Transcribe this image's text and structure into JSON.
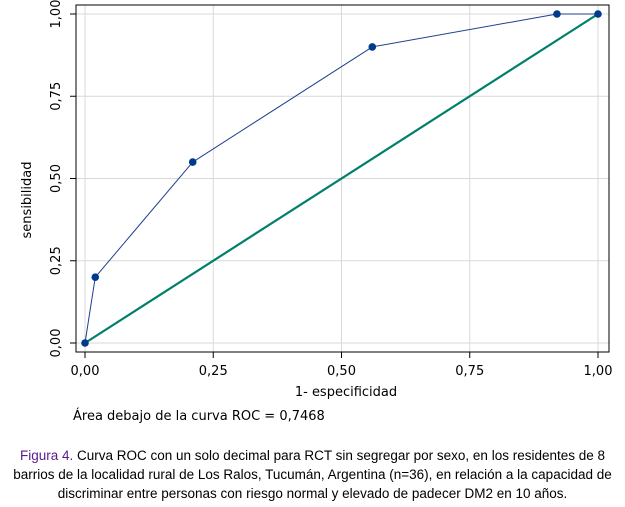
{
  "chart_data": {
    "type": "line",
    "xlabel": "1- especificidad",
    "ylabel": "sensibilidad",
    "xlim": [
      0,
      1
    ],
    "ylim": [
      0,
      1
    ],
    "grid": true,
    "legend": "none",
    "x_ticks": [
      "0,00",
      "0,25",
      "0,50",
      "0,75",
      "1,00"
    ],
    "y_ticks": [
      "0,00",
      "0,25",
      "0,50",
      "0,75",
      "1,00"
    ],
    "series": [
      {
        "color": "#1f3f8f",
        "markers": true,
        "x": [
          0,
          0.02,
          0.21,
          0.56,
          0.92,
          1.0
        ],
        "y": [
          0,
          0.2,
          0.55,
          0.9,
          1.0,
          1.0
        ]
      },
      {
        "color": "#00806b",
        "markers": false,
        "x": [
          0,
          1
        ],
        "y": [
          0,
          1
        ]
      }
    ]
  },
  "auc_note": "Área debajo de la curva ROC = 0,7468",
  "caption": {
    "label": "Figura 4.",
    "text": " Curva ROC con un solo decimal para RCT sin segregar por sexo, en los residentes de 8 barrios de la localidad rural de Los Ralos, Tucumán, Argentina  (n=36), en relación a la capacidad de discriminar entre personas con riesgo normal y elevado de padecer DM2 en 10 años."
  }
}
